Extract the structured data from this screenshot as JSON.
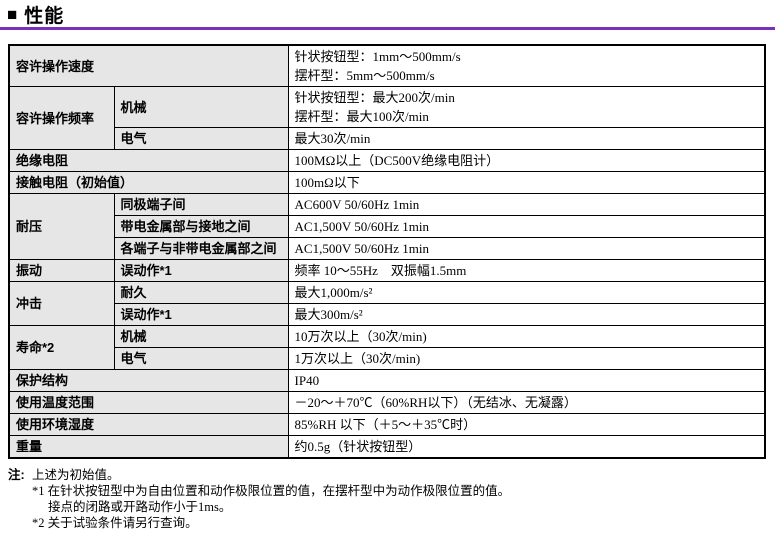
{
  "title": {
    "bullet": "■",
    "text": "性能"
  },
  "accent_color": "#7c30ba",
  "label_bg_color": "#e6e6e6",
  "table": {
    "rows": [
      {
        "type": "full",
        "label": "容许操作速度",
        "value": "针状按钮型：1mm～500mm/s\n摆杆型：5mm～500mm/s"
      },
      {
        "type": "group",
        "label": "容许操作频率",
        "rowspan": 2,
        "sub": "机械",
        "value": "针状按钮型：最大200次/min\n摆杆型：最大100次/min"
      },
      {
        "type": "sub",
        "sub": "电气",
        "value": "最大30次/min"
      },
      {
        "type": "full",
        "label": "绝缘电阻",
        "value": "100MΩ以上（DC500V绝缘电阻计）"
      },
      {
        "type": "full",
        "label": "接触电阻（初始值）",
        "value": "100mΩ以下"
      },
      {
        "type": "group",
        "label": "耐压",
        "rowspan": 3,
        "sub": "同极端子间",
        "value": "AC600V 50/60Hz 1min"
      },
      {
        "type": "sub",
        "sub": "带电金属部与接地之间",
        "value": "AC1,500V 50/60Hz 1min"
      },
      {
        "type": "sub",
        "sub": "各端子与非带电金属部之间",
        "value": "AC1,500V 50/60Hz 1min"
      },
      {
        "type": "group",
        "label": "振动",
        "rowspan": 1,
        "sub": "误动作*1",
        "value": "频率 10～55Hz　双振幅1.5mm"
      },
      {
        "type": "group",
        "label": "冲击",
        "rowspan": 2,
        "sub": "耐久",
        "value": "最大1,000m/s²"
      },
      {
        "type": "sub",
        "sub": "误动作*1",
        "value": "最大300m/s²"
      },
      {
        "type": "group",
        "label": "寿命*2",
        "rowspan": 2,
        "sub": "机械",
        "value": "10万次以上（30次/min)"
      },
      {
        "type": "sub",
        "sub": "电气",
        "value": "1万次以上（30次/min)"
      },
      {
        "type": "full",
        "label": "保护结构",
        "value": "IP40"
      },
      {
        "type": "full",
        "label": "使用温度范围",
        "value": "－20～＋70℃（60%RH以下）（无结冰、无凝露）"
      },
      {
        "type": "full",
        "label": "使用环境湿度",
        "value": "85%RH 以下（＋5～＋35℃时）"
      },
      {
        "type": "full",
        "label": "重量",
        "value": "约0.5g（针状按钮型）"
      }
    ]
  },
  "notes": {
    "marker": "注:",
    "lines": [
      {
        "indent": 0,
        "text": "上述为初始值。"
      },
      {
        "indent": 0,
        "text": "*1 在针状按钮型中为自由位置和动作极限位置的值，在摆杆型中为动作极限位置的值。"
      },
      {
        "indent": 1,
        "text": "接点的闭路或开路动作小于1ms。"
      },
      {
        "indent": 0,
        "text": "*2 关于试验条件请另行查询。"
      }
    ]
  }
}
